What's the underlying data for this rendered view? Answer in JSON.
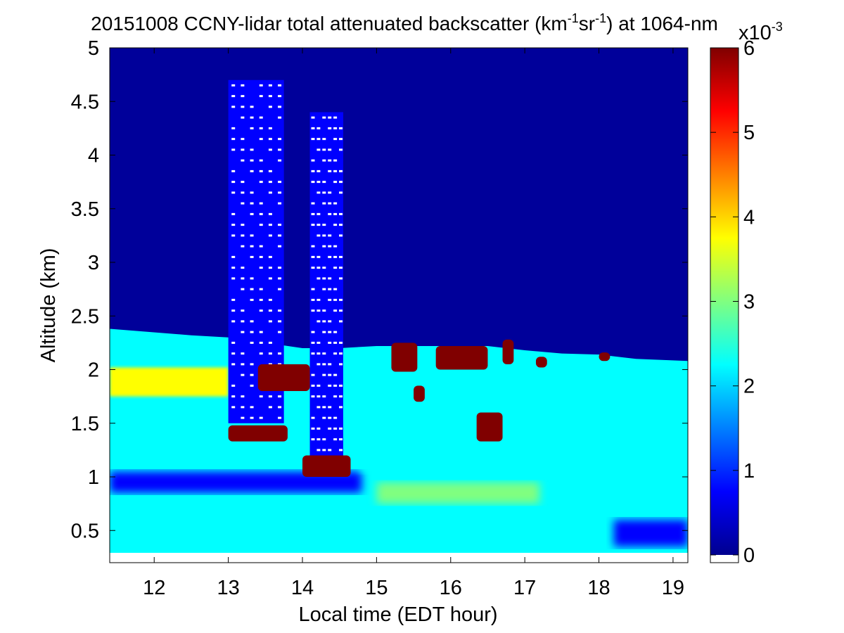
{
  "chart_data": {
    "type": "heatmap",
    "title": {
      "prefix": "20151008 CCNY-lidar total attenuated backscatter (km",
      "sup1": "-1",
      "mid1": "sr",
      "sup2": "-1",
      "mid2": ") at 1064-nm"
    },
    "xlabel": "Local time (EDT hour)",
    "ylabel": "Altitude (km)",
    "xlim": [
      11.4,
      19.2
    ],
    "ylim": [
      0.2,
      5.0
    ],
    "x_ticks": [
      12,
      13,
      14,
      15,
      16,
      17,
      18,
      19
    ],
    "x_tick_labels": [
      "12",
      "13",
      "14",
      "15",
      "16",
      "17",
      "18",
      "19"
    ],
    "y_ticks": [
      0.5,
      1,
      1.5,
      2,
      2.5,
      3,
      3.5,
      4,
      4.5,
      5
    ],
    "y_tick_labels": [
      "0.5",
      "1",
      "1.5",
      "2",
      "2.5",
      "3",
      "3.5",
      "4",
      "4.5",
      "5"
    ],
    "grid": false,
    "colorbar": {
      "colormap": "jet",
      "range": [
        0,
        6
      ],
      "ticks": [
        0,
        1,
        2,
        3,
        4,
        5,
        6
      ],
      "tick_labels": [
        "0",
        "1",
        "2",
        "3",
        "4",
        "5",
        "6"
      ],
      "scale_base": "x10",
      "scale_exp": "-3"
    },
    "colormap_colors": [
      "#00008f",
      "#0000ff",
      "#0080ff",
      "#00ffff",
      "#80ff80",
      "#ffff00",
      "#ff8000",
      "#ff0000",
      "#800000"
    ],
    "background_color": "#00009a",
    "missing_color": "#ffffff",
    "features": {
      "boundary_layer_top": [
        [
          11.4,
          2.38
        ],
        [
          12.5,
          2.32
        ],
        [
          13.0,
          2.3
        ],
        [
          13.5,
          2.25
        ],
        [
          14.0,
          2.2
        ],
        [
          14.5,
          2.2
        ],
        [
          15.0,
          2.22
        ],
        [
          15.5,
          2.22
        ],
        [
          16.0,
          2.22
        ],
        [
          16.5,
          2.22
        ],
        [
          17.0,
          2.18
        ],
        [
          17.5,
          2.15
        ],
        [
          18.0,
          2.14
        ],
        [
          18.5,
          2.1
        ],
        [
          19.2,
          2.08
        ]
      ],
      "residual_layer": {
        "x": [
          11.4,
          13.0
        ],
        "y": [
          1.75,
          2.02
        ],
        "value": 3.4
      },
      "cloud_patches": [
        {
          "x": [
            13.0,
            13.8
          ],
          "y": [
            1.33,
            1.48
          ],
          "value": 6
        },
        {
          "x": [
            13.4,
            14.1
          ],
          "y": [
            1.8,
            2.05
          ],
          "value": 6
        },
        {
          "x": [
            14.0,
            14.65
          ],
          "y": [
            1.0,
            1.2
          ],
          "value": 6
        },
        {
          "x": [
            15.2,
            15.55
          ],
          "y": [
            1.98,
            2.25
          ],
          "value": 6
        },
        {
          "x": [
            15.5,
            15.65
          ],
          "y": [
            1.7,
            1.85
          ],
          "value": 6
        },
        {
          "x": [
            15.8,
            16.5
          ],
          "y": [
            2.0,
            2.22
          ],
          "value": 6
        },
        {
          "x": [
            16.35,
            16.7
          ],
          "y": [
            1.33,
            1.6
          ],
          "value": 6
        },
        {
          "x": [
            16.7,
            16.85
          ],
          "y": [
            2.05,
            2.28
          ],
          "value": 6
        },
        {
          "x": [
            17.15,
            17.3
          ],
          "y": [
            2.02,
            2.12
          ],
          "value": 6
        },
        {
          "x": [
            18.0,
            18.15
          ],
          "y": [
            2.08,
            2.16
          ],
          "value": 6
        }
      ],
      "saturated_columns": [
        {
          "x": [
            13.0,
            13.75
          ],
          "y": [
            1.5,
            4.7
          ]
        },
        {
          "x": [
            14.1,
            14.55
          ],
          "y": [
            1.2,
            4.4
          ]
        }
      ]
    }
  }
}
